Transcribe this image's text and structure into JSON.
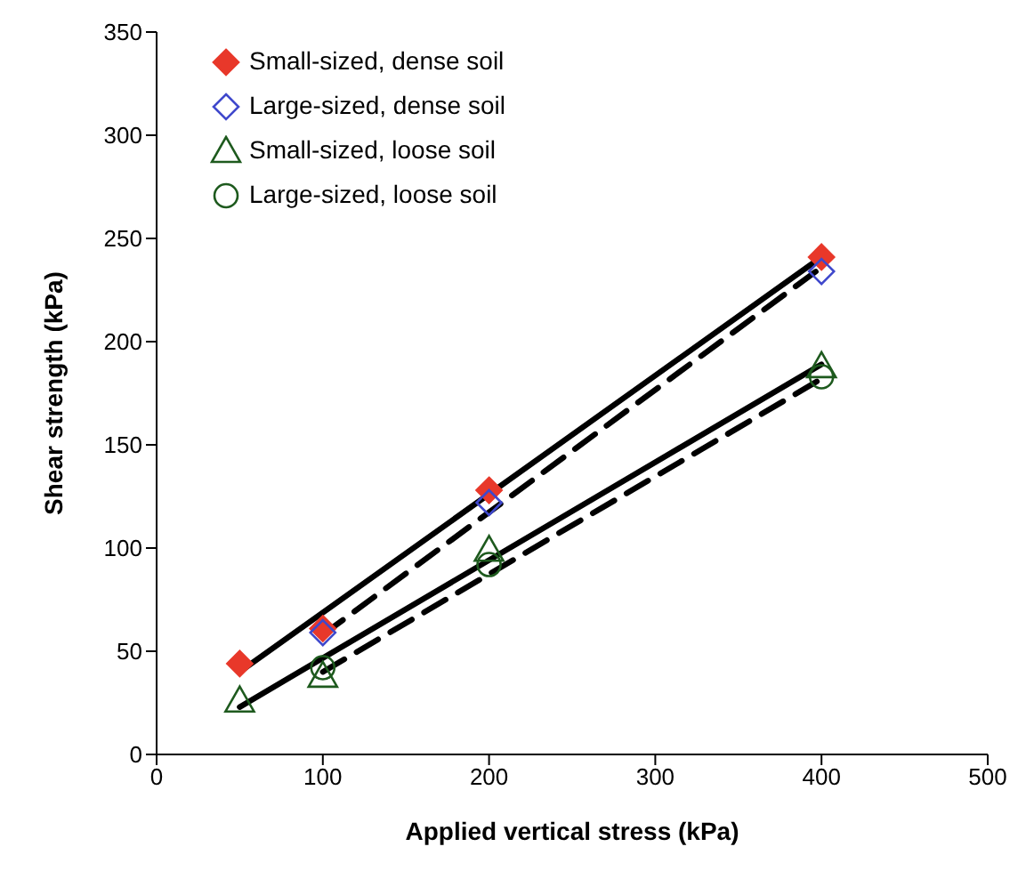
{
  "chart_data": {
    "type": "scatter",
    "xlabel": "Applied vertical stress (kPa)",
    "ylabel": "Shear strength (kPa)",
    "xlim": [
      0,
      500
    ],
    "xticks": [
      0,
      100,
      200,
      300,
      400,
      500
    ],
    "ylim": [
      0,
      350
    ],
    "yticks": [
      0,
      50,
      100,
      150,
      200,
      250,
      300,
      350
    ],
    "grid": false,
    "legend": "top left",
    "series": [
      {
        "name": "Small-sized, dense soil",
        "color": "#e8382a",
        "marker": "diamond",
        "x": [
          50,
          100,
          200,
          400
        ],
        "values": [
          44,
          61,
          128,
          241
        ]
      },
      {
        "name": "Large-sized, dense soil",
        "color": "#3f48cc",
        "marker": "diamond",
        "x": [
          100,
          200,
          400
        ],
        "values": [
          59,
          122,
          234
        ]
      },
      {
        "name": "Small-sized, loose soil",
        "color": "#1e5a1e",
        "marker": "triangle",
        "x": [
          50,
          100,
          200,
          400
        ],
        "values": [
          26,
          38,
          99,
          188
        ]
      },
      {
        "name": "Large-sized, loose soil",
        "color": "#1e5a1e",
        "marker": "circle",
        "x": [
          100,
          200,
          400
        ],
        "values": [
          42,
          92,
          183
        ]
      },
      {
        "type": "line",
        "color": "#000000",
        "line_style": "solid",
        "marker": "none",
        "x": [
          50,
          400
        ],
        "values": [
          40,
          241
        ]
      },
      {
        "type": "line",
        "color": "#000000",
        "line_style": "dashed",
        "marker": "none",
        "x": [
          100,
          400
        ],
        "values": [
          58,
          236
        ]
      },
      {
        "type": "line",
        "color": "#000000",
        "line_style": "solid",
        "marker": "none",
        "x": [
          50,
          400
        ],
        "values": [
          23,
          189
        ]
      },
      {
        "type": "line",
        "color": "#000000",
        "line_style": "dashed",
        "marker": "none",
        "x": [
          100,
          400
        ],
        "values": [
          40,
          182
        ]
      }
    ]
  }
}
